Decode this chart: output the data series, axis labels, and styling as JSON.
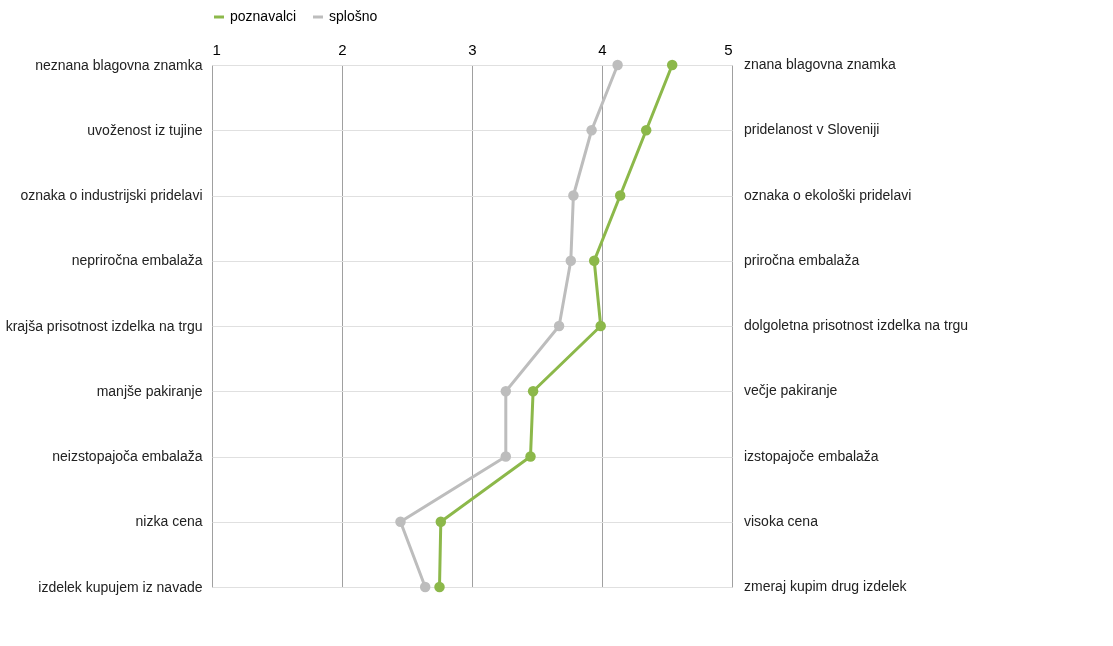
{
  "chart_data": {
    "type": "line",
    "orientation": "horizontal",
    "categories": [
      "neznana blagovna znamka",
      "uvoženost iz tujine",
      "oznaka o industrijski pridelavi",
      "nepriročna embalaža",
      "krajša prisotnost izdelka na trgu",
      "manjše pakiranje",
      "neizstopajoča embalaža",
      "nizka cena",
      "izdelek kupujem iz navade"
    ],
    "y2_categories": [
      "znana blagovna znamka",
      "pridelanost v Sloveniji",
      "oznaka o ekološki pridelavi",
      "priročna embalaža",
      "dolgoletna prisotnost izdelka na trgu",
      "večje pakiranje",
      "izstopajoče embalaža",
      "visoka cena",
      "zmeraj kupim drug izdelek"
    ],
    "series": [
      {
        "name": "poznavalci",
        "color": "#8cb84a",
        "values": [
          4.54,
          4.34,
          4.14,
          3.94,
          3.99,
          3.47,
          3.45,
          2.76,
          2.75
        ]
      },
      {
        "name": "splošno",
        "color": "#bdbdbd",
        "values": [
          4.12,
          3.92,
          3.78,
          3.76,
          3.67,
          3.26,
          3.26,
          2.45,
          2.64
        ]
      }
    ],
    "xlim": [
      1,
      5
    ],
    "xticks": [
      1,
      2,
      3,
      4,
      5
    ],
    "grid": true,
    "legend": "top",
    "marker": "circle",
    "line_style": "solid"
  }
}
